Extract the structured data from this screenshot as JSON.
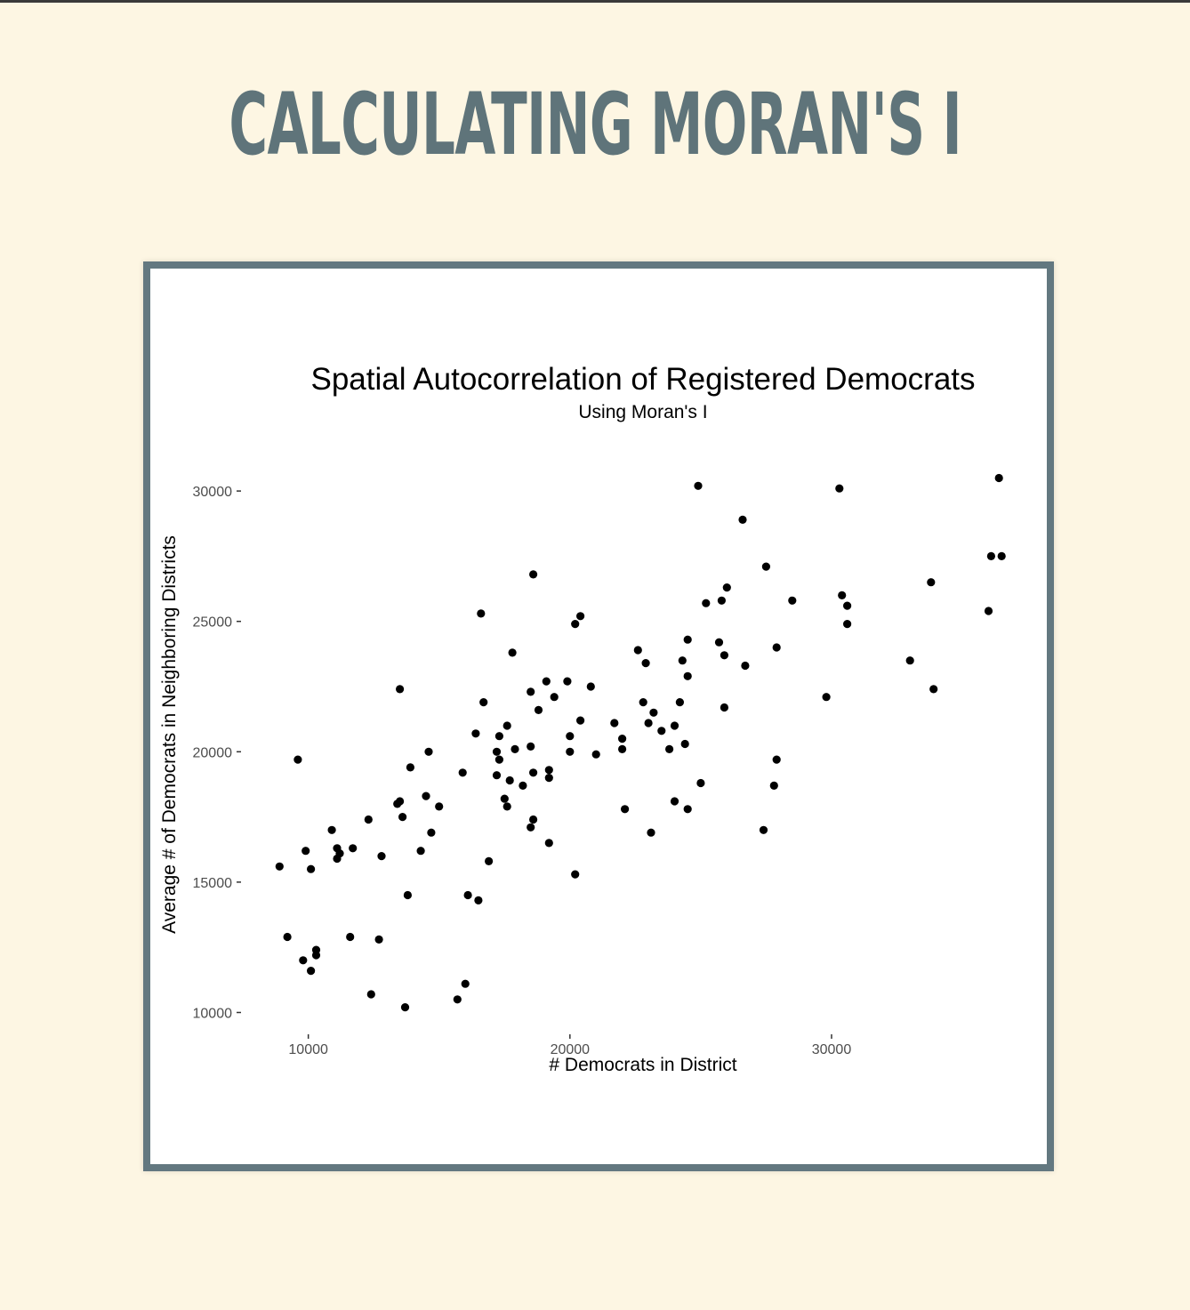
{
  "slide": {
    "title": "CALCULATING MORAN'S I"
  },
  "chart_data": {
    "type": "scatter",
    "title": "Spatial Autocorrelation of Registered Democrats",
    "subtitle": "Using Moran's I",
    "xlabel": "# Democrats in District",
    "ylabel": "Average # of Democrats in Neighboring Districts",
    "xlim": [
      7700,
      36800
    ],
    "ylim": [
      9300,
      31300
    ],
    "xticks": [
      10000,
      20000,
      30000
    ],
    "yticks": [
      10000,
      15000,
      20000,
      25000,
      30000
    ],
    "grid": false,
    "point_color": "#000000",
    "points": [
      [
        8900,
        15600
      ],
      [
        9200,
        12900
      ],
      [
        9600,
        19700
      ],
      [
        9800,
        12000
      ],
      [
        9900,
        16200
      ],
      [
        10100,
        15500
      ],
      [
        10100,
        11600
      ],
      [
        10300,
        12400
      ],
      [
        10300,
        12200
      ],
      [
        10900,
        17000
      ],
      [
        11100,
        16300
      ],
      [
        11100,
        15900
      ],
      [
        11200,
        16100
      ],
      [
        11600,
        12900
      ],
      [
        11700,
        16300
      ],
      [
        12300,
        17400
      ],
      [
        12400,
        10700
      ],
      [
        12700,
        12800
      ],
      [
        12800,
        16000
      ],
      [
        13400,
        18000
      ],
      [
        13500,
        22400
      ],
      [
        13500,
        18100
      ],
      [
        13600,
        17500
      ],
      [
        13700,
        10200
      ],
      [
        13800,
        14500
      ],
      [
        13900,
        19400
      ],
      [
        14300,
        16200
      ],
      [
        14500,
        18300
      ],
      [
        14600,
        20000
      ],
      [
        14700,
        16900
      ],
      [
        15000,
        17900
      ],
      [
        15700,
        10500
      ],
      [
        15900,
        19200
      ],
      [
        16000,
        11100
      ],
      [
        16100,
        14500
      ],
      [
        16400,
        20700
      ],
      [
        16500,
        14300
      ],
      [
        16600,
        25300
      ],
      [
        16700,
        21900
      ],
      [
        16900,
        15800
      ],
      [
        17200,
        20000
      ],
      [
        17200,
        19100
      ],
      [
        17300,
        20600
      ],
      [
        17300,
        19700
      ],
      [
        17500,
        18200
      ],
      [
        17600,
        21000
      ],
      [
        17600,
        17900
      ],
      [
        17700,
        18900
      ],
      [
        17800,
        23800
      ],
      [
        17900,
        20100
      ],
      [
        18200,
        18700
      ],
      [
        18500,
        22300
      ],
      [
        18500,
        20200
      ],
      [
        18500,
        17100
      ],
      [
        18600,
        26800
      ],
      [
        18600,
        19200
      ],
      [
        18600,
        17400
      ],
      [
        18800,
        21600
      ],
      [
        19100,
        22700
      ],
      [
        19200,
        19300
      ],
      [
        19200,
        19000
      ],
      [
        19200,
        16500
      ],
      [
        19400,
        22100
      ],
      [
        19900,
        22700
      ],
      [
        20000,
        20600
      ],
      [
        20000,
        20000
      ],
      [
        20200,
        24900
      ],
      [
        20200,
        15300
      ],
      [
        20400,
        25200
      ],
      [
        20400,
        21200
      ],
      [
        20800,
        22500
      ],
      [
        21000,
        19900
      ],
      [
        21700,
        21100
      ],
      [
        22000,
        20500
      ],
      [
        22000,
        20100
      ],
      [
        22100,
        17800
      ],
      [
        22600,
        23900
      ],
      [
        22800,
        21900
      ],
      [
        22900,
        23400
      ],
      [
        23000,
        21100
      ],
      [
        23100,
        16900
      ],
      [
        23200,
        21500
      ],
      [
        23500,
        20800
      ],
      [
        23800,
        20100
      ],
      [
        24000,
        21000
      ],
      [
        24000,
        18100
      ],
      [
        24200,
        21900
      ],
      [
        24300,
        23500
      ],
      [
        24400,
        20300
      ],
      [
        24500,
        22900
      ],
      [
        24500,
        24300
      ],
      [
        24500,
        17800
      ],
      [
        24900,
        30200
      ],
      [
        25000,
        18800
      ],
      [
        25200,
        25700
      ],
      [
        25700,
        24200
      ],
      [
        25800,
        25800
      ],
      [
        25900,
        23700
      ],
      [
        25900,
        21700
      ],
      [
        26000,
        26300
      ],
      [
        26600,
        28900
      ],
      [
        26700,
        23300
      ],
      [
        27400,
        17000
      ],
      [
        27500,
        27100
      ],
      [
        27800,
        18700
      ],
      [
        27900,
        24000
      ],
      [
        27900,
        19700
      ],
      [
        28500,
        25800
      ],
      [
        29800,
        22100
      ],
      [
        30300,
        30100
      ],
      [
        30400,
        26000
      ],
      [
        30600,
        24900
      ],
      [
        30600,
        25600
      ],
      [
        33000,
        23500
      ],
      [
        33800,
        26500
      ],
      [
        33900,
        22400
      ],
      [
        36000,
        25400
      ],
      [
        36100,
        27500
      ],
      [
        36400,
        30500
      ],
      [
        36500,
        27500
      ]
    ]
  }
}
